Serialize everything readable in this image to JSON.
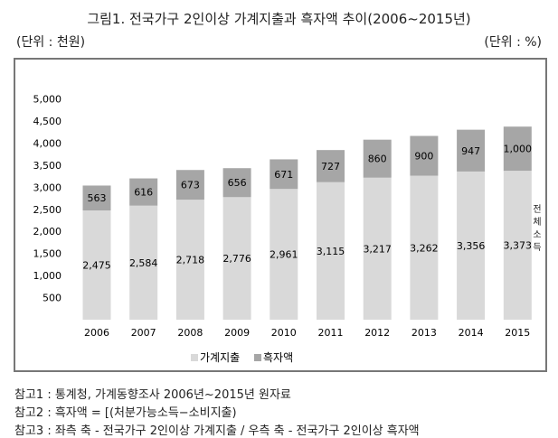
{
  "title": "그림1. 전국가구 2인이상 가계지출과 흑자액 추이(2006~2015년)",
  "unit_left": "(단위 : 천원)",
  "unit_right": "(단위 : %)",
  "chart_data": {
    "type": "bar",
    "stacked": true,
    "categories": [
      "2006",
      "2007",
      "2008",
      "2009",
      "2010",
      "2011",
      "2012",
      "2013",
      "2014",
      "2015"
    ],
    "series": [
      {
        "name": "가계지출",
        "color": "#d9d9d9",
        "values": [
          2475,
          2584,
          2718,
          2776,
          2961,
          3115,
          3217,
          3262,
          3356,
          3373
        ],
        "labels": [
          "2,475",
          "2,584",
          "2,718",
          "2,776",
          "2,961",
          "3,115",
          "3,217",
          "3,262",
          "3,356",
          "3,373"
        ]
      },
      {
        "name": "흑자액",
        "color": "#a6a6a6",
        "values": [
          563,
          616,
          673,
          656,
          671,
          727,
          860,
          900,
          947,
          1000
        ],
        "labels": [
          "563",
          "616",
          "673",
          "656",
          "671",
          "727",
          "860",
          "900",
          "947",
          "1,000"
        ]
      }
    ],
    "yticks": [
      "500",
      "1,000",
      "1,500",
      "2,000",
      "2,500",
      "3,000",
      "3,500",
      "4,000",
      "4,500",
      "5,000"
    ],
    "ytick_values": [
      500,
      1000,
      1500,
      2000,
      2500,
      3000,
      3500,
      4000,
      4500,
      5000
    ],
    "ylim": [
      0,
      5000
    ],
    "annotation": "전체소득",
    "legend": "bottom",
    "grid": false
  },
  "notes": [
    "참고1 : 통계청, 가계동향조사 2006년~2015년 원자료",
    "참고2 : 흑자액 = [(처분가능소득−소비지출)",
    "참고3 : 좌측 축 - 전국가구 2인이상 가계지출 / 우측 축 - 전국가구 2인이상 흑자액"
  ]
}
